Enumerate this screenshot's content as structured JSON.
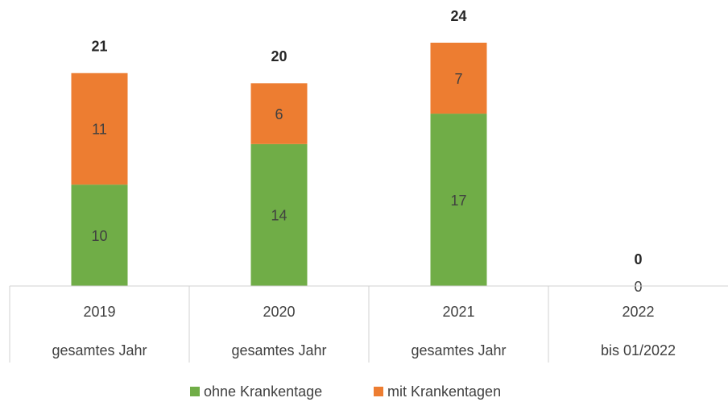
{
  "chart_data": {
    "type": "stacked_bar",
    "categories": [
      [
        "2019",
        "gesamtes Jahr"
      ],
      [
        "2020",
        "gesamtes Jahr"
      ],
      [
        "2021",
        "gesamtes Jahr"
      ],
      [
        "2022",
        "bis 01/2022"
      ]
    ],
    "series": [
      {
        "name": "ohne Krankentage",
        "color": "#70ad47",
        "values": [
          10,
          14,
          17,
          0
        ]
      },
      {
        "name": "mit Krankentagen",
        "color": "#ed7d31",
        "values": [
          11,
          6,
          7,
          null
        ]
      }
    ],
    "totals": [
      21,
      20,
      24,
      0
    ],
    "ylim": [
      0,
      24
    ]
  }
}
